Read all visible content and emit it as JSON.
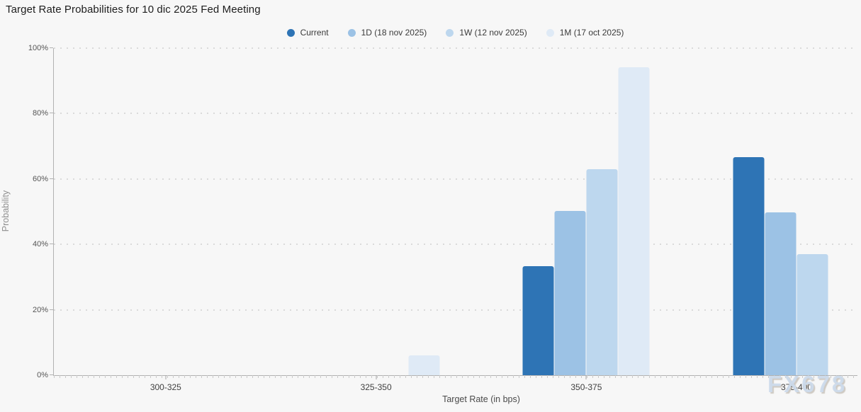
{
  "page": {
    "title": "Target Rate Probabilities for 10 dic 2025 Fed Meeting",
    "watermark": "FX678"
  },
  "chart_data": {
    "type": "bar",
    "title": "Target Rate Probabilities for 10 dic 2025 Fed Meeting",
    "xlabel": "Target Rate (in bps)",
    "ylabel": "Probability",
    "ylim": [
      0,
      100
    ],
    "y_ticks": [
      "0%",
      "20%",
      "40%",
      "60%",
      "80%",
      "100%"
    ],
    "grid": "horizontal-dotted",
    "legend_position": "top-center",
    "categories": [
      "300-325",
      "325-350",
      "350-375",
      "375-400"
    ],
    "series": [
      {
        "name": "Current",
        "color": "#2e74b5",
        "values": [
          0,
          0,
          33.3,
          66.7
        ]
      },
      {
        "name": "1D (18 nov 2025)",
        "color": "#9cc2e5",
        "values": [
          0,
          0,
          50.2,
          49.8
        ]
      },
      {
        "name": "1W (12 nov 2025)",
        "color": "#bdd7ee",
        "values": [
          0,
          0,
          63.0,
          37.0
        ]
      },
      {
        "name": "1M (17 oct 2025)",
        "color": "#dfeaf6",
        "values": [
          0,
          6.1,
          94.1,
          0
        ]
      }
    ]
  }
}
